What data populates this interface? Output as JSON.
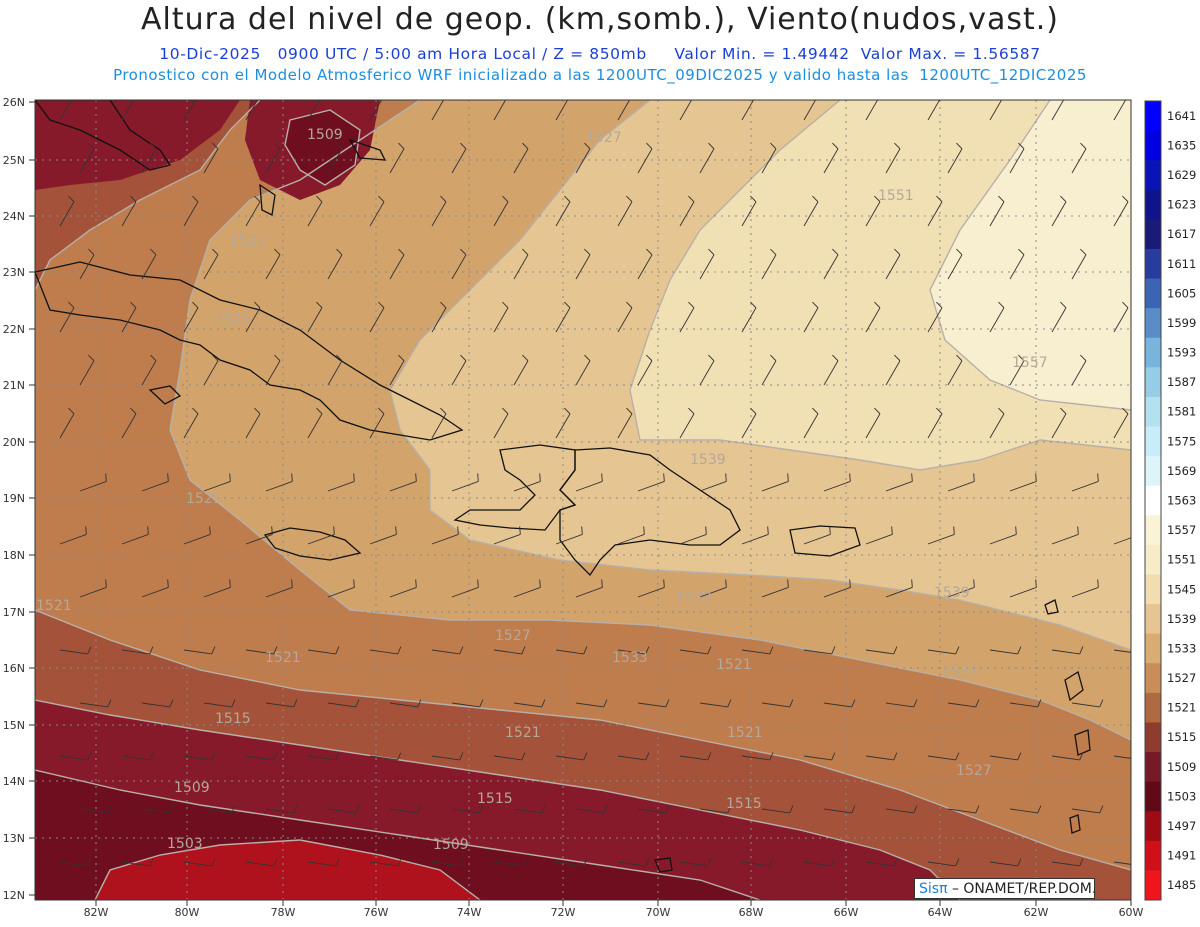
{
  "header": {
    "title": "Altura del nivel de geop. (km,somb.), Viento(nudos,vast.)",
    "subtitle_line1": "10-Dic-2025   0900 UTC / 5:00 am Hora Local / Z = 850mb     Valor Min. = 1.49442  Valor Max. = 1.56587",
    "subtitle_line2": "Pronostico con el Modelo Atmosferico WRF inicializado a las 1200UTC_09DIC2025 y valido hasta las  1200UTC_12DIC2025"
  },
  "map": {
    "lat_labels": [
      "26N",
      "25N",
      "24N",
      "23N",
      "22N",
      "21N",
      "20N",
      "19N",
      "18N",
      "17N",
      "16N",
      "15N",
      "14N",
      "13N",
      "12N"
    ],
    "lon_labels": [
      "82W",
      "80W",
      "78W",
      "76W",
      "74W",
      "72W",
      "70W",
      "68W",
      "66W",
      "64W",
      "62W",
      "60W"
    ],
    "contour_labels": [
      "1509",
      "1527",
      "1551",
      "1521",
      "1521",
      "1557",
      "1539",
      "1521",
      "1521",
      "1539",
      "1521",
      "1533",
      "1527",
      "1521",
      "1533",
      "1515",
      "1521",
      "1521",
      "1527",
      "1509",
      "1515",
      "1515",
      "1509",
      "1503",
      "1533"
    ],
    "colors": {
      "darkest_red": "#6e0e1f",
      "dark_maroon": "#861a2b",
      "rust": "#a4533a",
      "brown": "#bf7d4e",
      "tan": "#d2a36b",
      "light_tan": "#e5c592",
      "pale": "#f1e0b4",
      "palest": "#f8efd0",
      "low_red": "#b0121d"
    }
  },
  "colorbar": {
    "labels": [
      "1641",
      "1635",
      "1629",
      "1623",
      "1617",
      "1611",
      "1605",
      "1599",
      "1593",
      "1587",
      "1581",
      "1575",
      "1569",
      "1563",
      "1557",
      "1551",
      "1545",
      "1539",
      "1533",
      "1527",
      "1521",
      "1515",
      "1509",
      "1503",
      "1497",
      "1491",
      "1485"
    ],
    "colors": [
      "#0000ff",
      "#0000e0",
      "#0a14b4",
      "#10148c",
      "#1a1a78",
      "#283ca0",
      "#3c64b4",
      "#5a8cc8",
      "#78b4dc",
      "#96cce6",
      "#b4e1f0",
      "#c8ecf8",
      "#dcf4fa",
      "#ffffff",
      "#fbf3d6",
      "#f8ebc8",
      "#f2ddb0",
      "#e7c592",
      "#d9ac73",
      "#c88d58",
      "#b06a42",
      "#8e3c2e",
      "#761a28",
      "#600a18",
      "#a00a14",
      "#d01018",
      "#f0141c"
    ]
  },
  "credit": {
    "brand": "Sisπ",
    "text": "– ONAMET/REP.DOM."
  }
}
